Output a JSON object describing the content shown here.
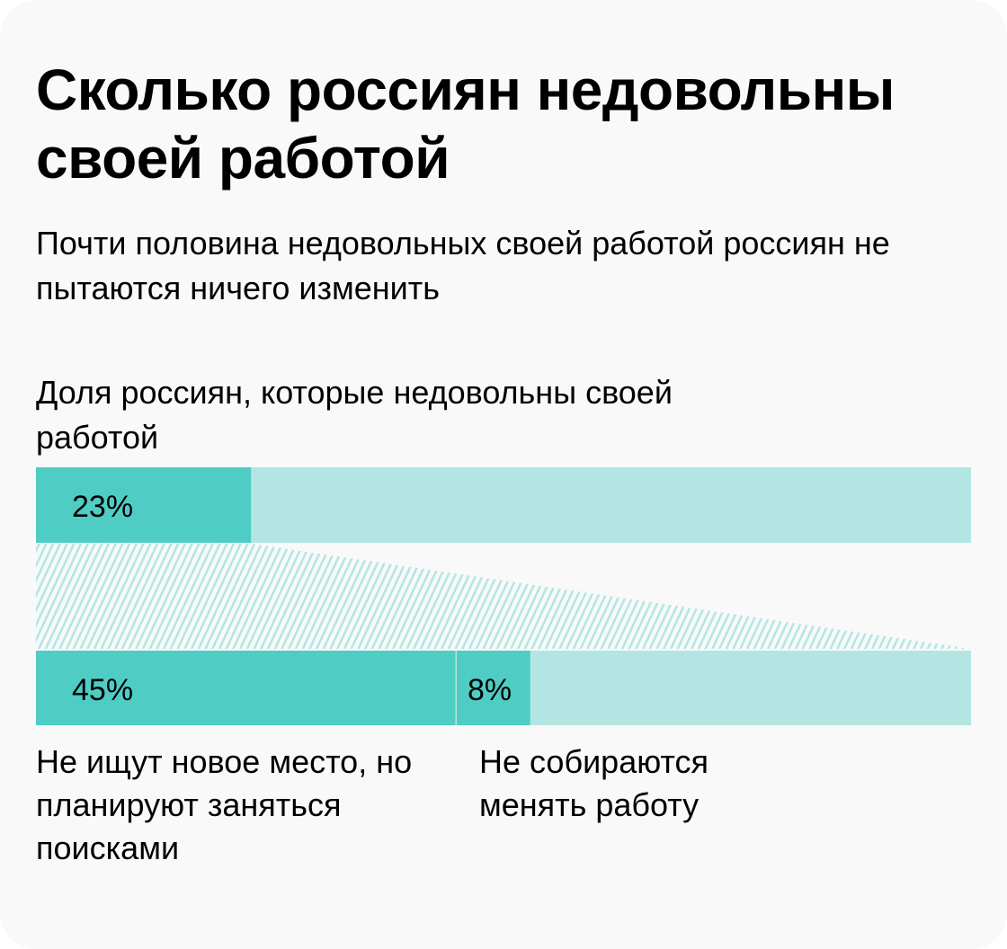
{
  "title": "Сколько россиян недовольны своей работой",
  "subtitle": "Почти половина недовольных своей работой россиян не пытаются ничего изменить",
  "colors": {
    "primary": "#4fcdc5",
    "secondary": "#b3e6e2",
    "background": "#f9f9f9"
  },
  "chart_data": {
    "type": "bar",
    "title": "Доля россиян, которые недовольны своей работой",
    "bars": [
      {
        "segments": [
          {
            "value": 23,
            "label": "23%"
          }
        ]
      },
      {
        "segments": [
          {
            "value": 45,
            "label": "45%",
            "caption": "Не ищут новое место, но планируют заняться поисками"
          },
          {
            "value": 8,
            "label": "8%",
            "caption": "Не собираются менять работу"
          }
        ]
      }
    ],
    "unit": "%",
    "max": 100
  }
}
